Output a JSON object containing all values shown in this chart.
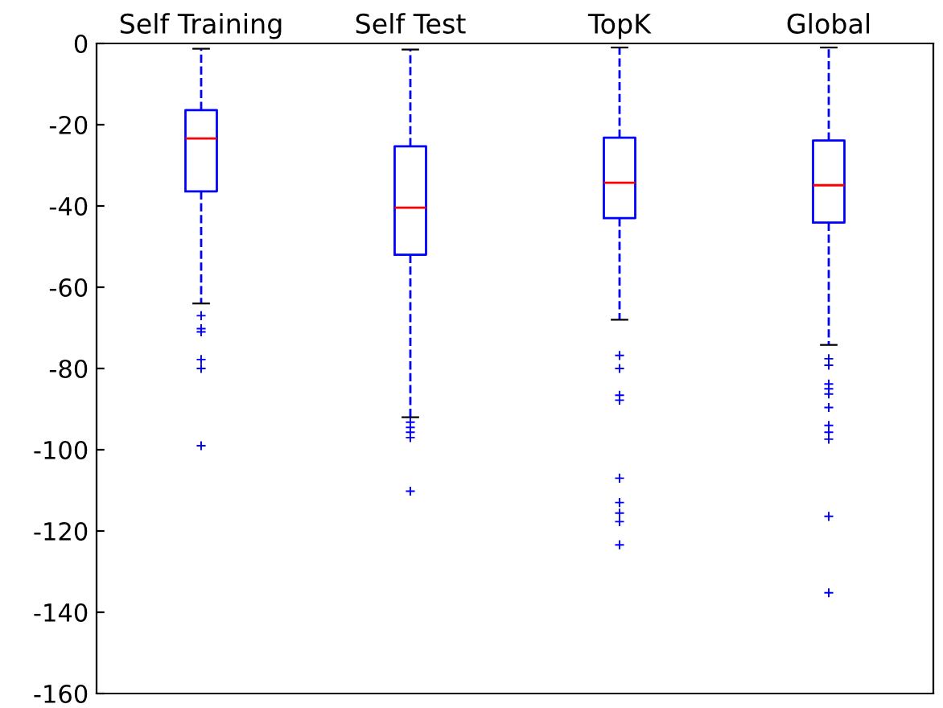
{
  "chart_data": {
    "type": "box",
    "categories": [
      "Self Training",
      "Self Test",
      "TopK",
      "Global"
    ],
    "boxes": [
      {
        "low": -64,
        "q1": -36.4,
        "median": -23.4,
        "q3": -16.4,
        "high": -1.3,
        "outliers": [
          -67,
          -70.2,
          -71,
          -77.8,
          -80,
          -99
        ]
      },
      {
        "low": -92,
        "q1": -52,
        "median": -40.4,
        "q3": -25.3,
        "high": -1.5,
        "outliers": [
          -93.2,
          -94.5,
          -95.7,
          -97,
          -110.2
        ]
      },
      {
        "low": -68,
        "q1": -43,
        "median": -34.3,
        "q3": -23.2,
        "high": -1,
        "outliers": [
          -76.8,
          -80,
          -86.6,
          -87.8,
          -107,
          -113,
          -115.6,
          -117.7,
          -123.4
        ]
      },
      {
        "low": -74.2,
        "q1": -44.1,
        "median": -34.9,
        "q3": -23.9,
        "high": -1,
        "outliers": [
          -77.6,
          -79.2,
          -83.8,
          -85,
          -86.3,
          -89.6,
          -94,
          -95.7,
          -97.4,
          -116.4,
          -135.2
        ]
      }
    ],
    "color": "#0000ff",
    "ylim": [
      -160,
      0
    ],
    "yticks": [
      -160,
      -140,
      -120,
      -100,
      -80,
      -60,
      -40,
      -20,
      0
    ],
    "grid": false
  }
}
